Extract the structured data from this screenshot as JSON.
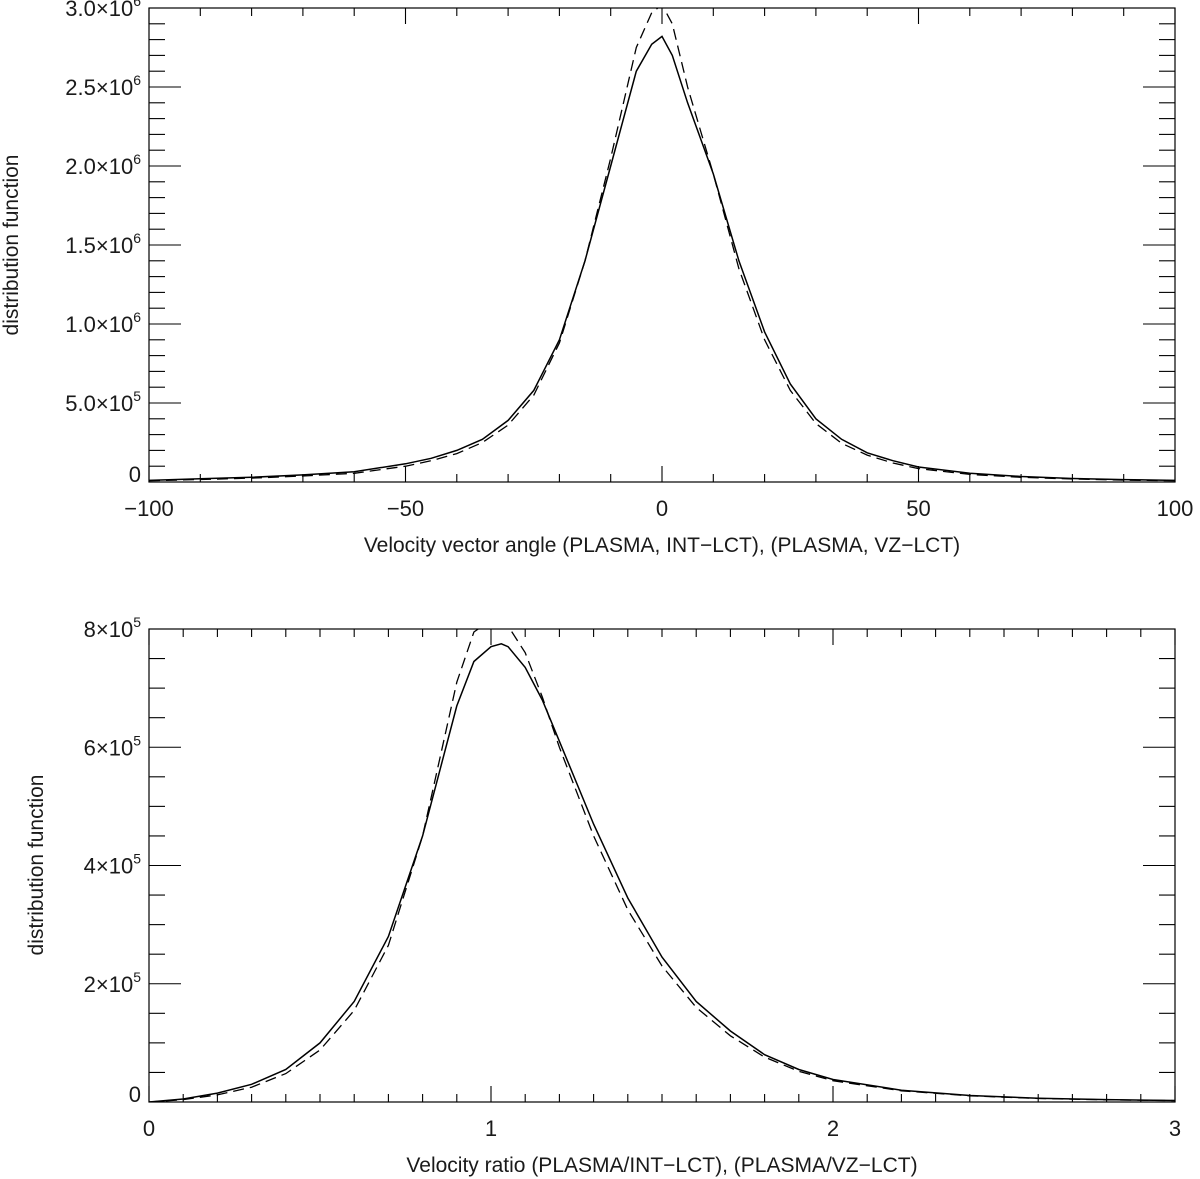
{
  "chart_data": [
    {
      "type": "line",
      "title": "",
      "xlabel": "Velocity vector angle (PLASMA, INT−LCT), (PLASMA, VZ−LCT)",
      "ylabel": "distribution function",
      "xlim": [
        -100,
        100
      ],
      "ylim": [
        0,
        3000000
      ],
      "grid": false,
      "x_ticks": [
        {
          "value": -100,
          "label": "−100"
        },
        {
          "value": -50,
          "label": "−50"
        },
        {
          "value": 0,
          "label": "0"
        },
        {
          "value": 50,
          "label": "50"
        },
        {
          "value": 100,
          "label": "100"
        }
      ],
      "y_ticks": [
        {
          "value": 0,
          "mant": "0",
          "exp": ""
        },
        {
          "value": 500000,
          "mant": "5.0×10",
          "exp": "5"
        },
        {
          "value": 1000000,
          "mant": "1.0×10",
          "exp": "6"
        },
        {
          "value": 1500000,
          "mant": "1.5×10",
          "exp": "6"
        },
        {
          "value": 2000000,
          "mant": "2.0×10",
          "exp": "6"
        },
        {
          "value": 2500000,
          "mant": "2.5×10",
          "exp": "6"
        },
        {
          "value": 3000000,
          "mant": "3.0×10",
          "exp": "6"
        }
      ],
      "series": [
        {
          "style": "solid",
          "x": [
            -100,
            -90,
            -80,
            -70,
            -60,
            -50,
            -45,
            -40,
            -35,
            -30,
            -25,
            -20,
            -15,
            -10,
            -5,
            -2,
            0,
            2,
            5,
            10,
            15,
            20,
            25,
            30,
            35,
            40,
            45,
            50,
            60,
            70,
            80,
            90,
            100
          ],
          "y": [
            10000,
            20000,
            30000,
            45000,
            65000,
            115000,
            150000,
            200000,
            270000,
            390000,
            580000,
            900000,
            1400000,
            2000000,
            2600000,
            2770000,
            2820000,
            2700000,
            2400000,
            1950000,
            1400000,
            950000,
            620000,
            400000,
            270000,
            185000,
            135000,
            95000,
            55000,
            35000,
            22000,
            15000,
            10000
          ]
        },
        {
          "style": "dashed",
          "x": [
            -100,
            -90,
            -80,
            -70,
            -60,
            -50,
            -45,
            -40,
            -35,
            -30,
            -25,
            -20,
            -15,
            -10,
            -5,
            -2,
            0,
            2,
            5,
            10,
            15,
            20,
            25,
            30,
            35,
            40,
            45,
            50,
            60,
            70,
            80,
            90,
            100
          ],
          "y": [
            8000,
            16000,
            25000,
            38000,
            55000,
            100000,
            135000,
            180000,
            250000,
            360000,
            550000,
            880000,
            1400000,
            2050000,
            2750000,
            2970000,
            3020000,
            2900000,
            2500000,
            1950000,
            1350000,
            900000,
            580000,
            370000,
            245000,
            170000,
            120000,
            85000,
            48000,
            30000,
            19000,
            12000,
            8000
          ]
        }
      ]
    },
    {
      "type": "line",
      "title": "",
      "xlabel": "Velocity ratio (PLASMA/INT−LCT), (PLASMA/VZ−LCT)",
      "ylabel": "distribution function",
      "xlim": [
        0,
        3
      ],
      "ylim": [
        0,
        800000
      ],
      "grid": false,
      "x_ticks": [
        {
          "value": 0,
          "label": "0"
        },
        {
          "value": 1,
          "label": "1"
        },
        {
          "value": 2,
          "label": "2"
        },
        {
          "value": 3,
          "label": "3"
        }
      ],
      "y_ticks": [
        {
          "value": 0,
          "mant": "0",
          "exp": ""
        },
        {
          "value": 200000,
          "mant": "2×10",
          "exp": "5"
        },
        {
          "value": 400000,
          "mant": "4×10",
          "exp": "5"
        },
        {
          "value": 600000,
          "mant": "6×10",
          "exp": "5"
        },
        {
          "value": 800000,
          "mant": "8×10",
          "exp": "5"
        }
      ],
      "series": [
        {
          "style": "solid",
          "x": [
            0,
            0.1,
            0.2,
            0.3,
            0.4,
            0.5,
            0.6,
            0.7,
            0.8,
            0.85,
            0.9,
            0.95,
            1.0,
            1.03,
            1.05,
            1.1,
            1.15,
            1.2,
            1.3,
            1.4,
            1.5,
            1.6,
            1.7,
            1.8,
            1.9,
            2.0,
            2.2,
            2.4,
            2.6,
            2.8,
            3.0
          ],
          "y": [
            0,
            5000,
            15000,
            30000,
            55000,
            100000,
            170000,
            280000,
            450000,
            560000,
            670000,
            745000,
            770000,
            775000,
            770000,
            735000,
            680000,
            610000,
            470000,
            345000,
            245000,
            170000,
            120000,
            80000,
            55000,
            38000,
            20000,
            11000,
            6500,
            4000,
            2500
          ]
        },
        {
          "style": "dashed",
          "x": [
            0,
            0.1,
            0.2,
            0.3,
            0.4,
            0.5,
            0.6,
            0.7,
            0.8,
            0.85,
            0.9,
            0.95,
            1.0,
            1.03,
            1.05,
            1.1,
            1.15,
            1.2,
            1.3,
            1.4,
            1.5,
            1.6,
            1.7,
            1.8,
            1.9,
            2.0,
            2.2,
            2.4,
            2.6,
            2.8,
            3.0
          ],
          "y": [
            0,
            4000,
            12000,
            25000,
            48000,
            88000,
            155000,
            265000,
            450000,
            580000,
            710000,
            795000,
            815000,
            815000,
            805000,
            760000,
            685000,
            600000,
            450000,
            325000,
            230000,
            160000,
            112000,
            76000,
            52000,
            36000,
            19000,
            10500,
            6000,
            3800,
            2300
          ]
        }
      ]
    }
  ]
}
